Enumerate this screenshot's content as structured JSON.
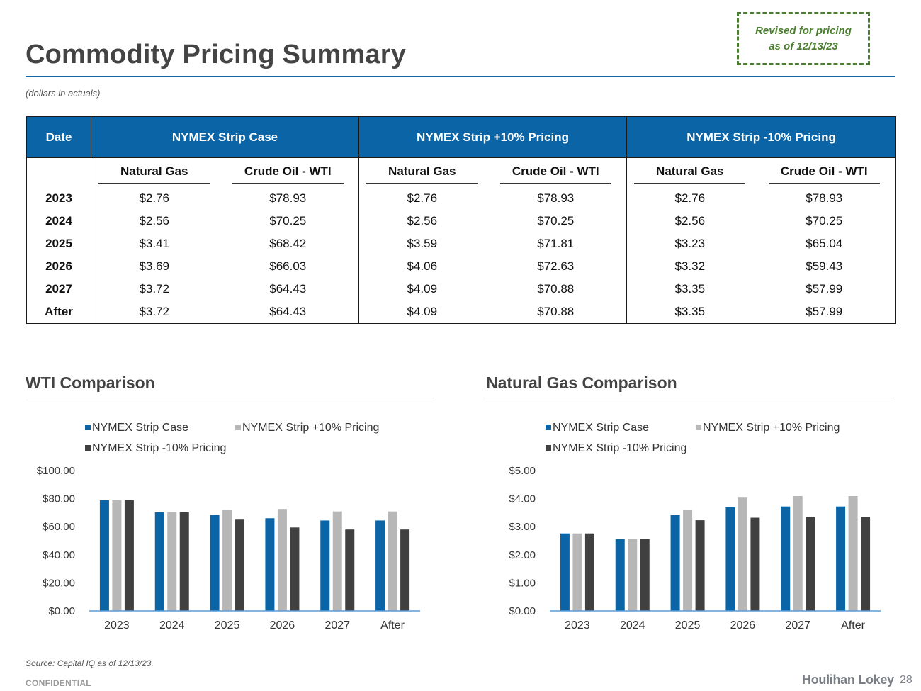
{
  "header": {
    "title": "Commodity Pricing Summary",
    "revised_line1": "Revised for pricing",
    "revised_line2": "as of 12/13/23",
    "units_note": "(dollars in actuals)"
  },
  "table": {
    "col_date": "Date",
    "groups": [
      "NYMEX Strip Case",
      "NYMEX Strip +10% Pricing",
      "NYMEX Strip -10% Pricing"
    ],
    "subcols": [
      "Natural Gas",
      "Crude Oil - WTI"
    ],
    "rows": [
      {
        "date": "2023",
        "cells": [
          "$2.76",
          "$78.93",
          "$2.76",
          "$78.93",
          "$2.76",
          "$78.93"
        ]
      },
      {
        "date": "2024",
        "cells": [
          "$2.56",
          "$70.25",
          "$2.56",
          "$70.25",
          "$2.56",
          "$70.25"
        ]
      },
      {
        "date": "2025",
        "cells": [
          "$3.41",
          "$68.42",
          "$3.59",
          "$71.81",
          "$3.23",
          "$65.04"
        ]
      },
      {
        "date": "2026",
        "cells": [
          "$3.69",
          "$66.03",
          "$4.06",
          "$72.63",
          "$3.32",
          "$59.43"
        ]
      },
      {
        "date": "2027",
        "cells": [
          "$3.72",
          "$64.43",
          "$4.09",
          "$70.88",
          "$3.35",
          "$57.99"
        ]
      },
      {
        "date": "After",
        "cells": [
          "$3.72",
          "$64.43",
          "$4.09",
          "$70.88",
          "$3.35",
          "$57.99"
        ]
      }
    ]
  },
  "sections": {
    "wti_title": "WTI Comparison",
    "gas_title": "Natural Gas Comparison"
  },
  "colors": {
    "strip": "#0b64a6",
    "plus10": "#b7b7b7",
    "minus10": "#404040",
    "axis": "#5b9bd5"
  },
  "chart_data": [
    {
      "type": "bar",
      "title": "WTI Comparison",
      "categories": [
        "2023",
        "2024",
        "2025",
        "2026",
        "2027",
        "After"
      ],
      "series": [
        {
          "name": "NYMEX Strip Case",
          "values": [
            78.93,
            70.25,
            68.42,
            66.03,
            64.43,
            64.43
          ]
        },
        {
          "name": "NYMEX Strip +10% Pricing",
          "values": [
            78.93,
            70.25,
            71.81,
            72.63,
            70.88,
            70.88
          ]
        },
        {
          "name": "NYMEX Strip -10% Pricing",
          "values": [
            78.93,
            70.25,
            65.04,
            59.43,
            57.99,
            57.99
          ]
        }
      ],
      "yticks": [
        "$0.00",
        "$20.00",
        "$40.00",
        "$60.00",
        "$80.00",
        "$100.00"
      ],
      "ylim": [
        0,
        100
      ],
      "legend": "top",
      "xlabel": "",
      "ylabel": ""
    },
    {
      "type": "bar",
      "title": "Natural Gas Comparison",
      "categories": [
        "2023",
        "2024",
        "2025",
        "2026",
        "2027",
        "After"
      ],
      "series": [
        {
          "name": "NYMEX Strip Case",
          "values": [
            2.76,
            2.56,
            3.41,
            3.69,
            3.72,
            3.72
          ]
        },
        {
          "name": "NYMEX Strip +10% Pricing",
          "values": [
            2.76,
            2.56,
            3.59,
            4.06,
            4.09,
            4.09
          ]
        },
        {
          "name": "NYMEX Strip -10% Pricing",
          "values": [
            2.76,
            2.56,
            3.23,
            3.32,
            3.35,
            3.35
          ]
        }
      ],
      "yticks": [
        "$0.00",
        "$1.00",
        "$2.00",
        "$3.00",
        "$4.00",
        "$5.00"
      ],
      "ylim": [
        0,
        5
      ],
      "legend": "top",
      "xlabel": "",
      "ylabel": ""
    }
  ],
  "footer": {
    "source": "Source: Capital IQ as of 12/13/23.",
    "confidential": "CONFIDENTIAL",
    "brand": "Houlihan Lokey",
    "page": "28"
  }
}
